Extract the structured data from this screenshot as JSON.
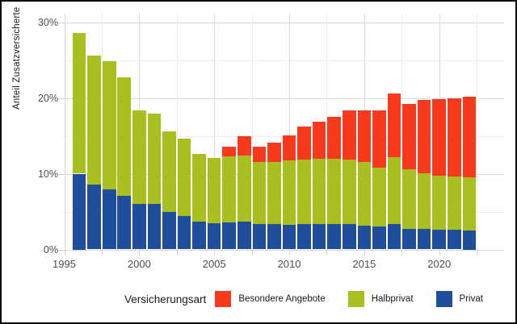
{
  "chart_data": {
    "type": "bar",
    "stacked": true,
    "title": "",
    "xlabel": "",
    "ylabel": "Anteil Zusatzversicherte",
    "legend_title": "Versicherungsart",
    "legend_position": "bottom",
    "grid": true,
    "value_unit": "percent",
    "ylim": [
      0,
      31
    ],
    "y_major_ticks": [
      {
        "label": "0%",
        "value": 0
      },
      {
        "label": "10%",
        "value": 10
      },
      {
        "label": "20%",
        "value": 20
      },
      {
        "label": "30%",
        "value": 30
      }
    ],
    "y_minor_gridlines": [
      5,
      15,
      25
    ],
    "x_major_ticks": [
      {
        "label": "1995",
        "value": 1995
      },
      {
        "label": "2000",
        "value": 2000
      },
      {
        "label": "2005",
        "value": 2005
      },
      {
        "label": "2010",
        "value": 2010
      },
      {
        "label": "2015",
        "value": 2015
      },
      {
        "label": "2020",
        "value": 2020
      }
    ],
    "x_minor_gridlines": [
      1997.5,
      2002.5,
      2007.5,
      2012.5,
      2017.5,
      2022.5
    ],
    "categories": [
      1996,
      1997,
      1998,
      1999,
      2000,
      2001,
      2002,
      2003,
      2004,
      2005,
      2006,
      2007,
      2008,
      2009,
      2010,
      2011,
      2012,
      2013,
      2014,
      2015,
      2016,
      2017,
      2018,
      2019,
      2020,
      2021,
      2022
    ],
    "series": [
      {
        "name": "Besondere Angebote",
        "color": "#f8391d",
        "values": [
          0,
          0,
          0,
          0,
          0,
          0,
          0,
          0,
          0,
          0,
          1.3,
          2.6,
          2.1,
          2.6,
          3.3,
          4.3,
          4.9,
          5.5,
          6.5,
          6.8,
          7.5,
          8.4,
          8.6,
          9.6,
          10.1,
          10.4,
          10.7
        ]
      },
      {
        "name": "Halbprivat",
        "color": "#a8bf1f",
        "values": [
          18.6,
          17.0,
          16.9,
          15.6,
          12.4,
          11.9,
          10.7,
          10.2,
          8.9,
          8.6,
          8.7,
          8.7,
          8.2,
          8.1,
          8.6,
          8.5,
          8.6,
          8.6,
          8.6,
          8.4,
          7.8,
          8.8,
          7.9,
          7.4,
          7.1,
          7.0,
          7.0
        ]
      },
      {
        "name": "Privat",
        "color": "#1f4e9c",
        "values": [
          10.0,
          8.6,
          7.9,
          7.1,
          6.0,
          6.0,
          4.9,
          4.4,
          3.7,
          3.5,
          3.6,
          3.7,
          3.3,
          3.4,
          3.2,
          3.4,
          3.4,
          3.4,
          3.3,
          3.1,
          3.0,
          3.4,
          2.7,
          2.7,
          2.6,
          2.6,
          2.5
        ]
      }
    ]
  },
  "colors": {
    "grid_major": "#d9d9d9",
    "grid_minor": "#ededed",
    "tick_text": "#4d4d4d",
    "text": "#1a1a1a",
    "frame_border": "#0a0a0a",
    "background": "#ffffff"
  }
}
